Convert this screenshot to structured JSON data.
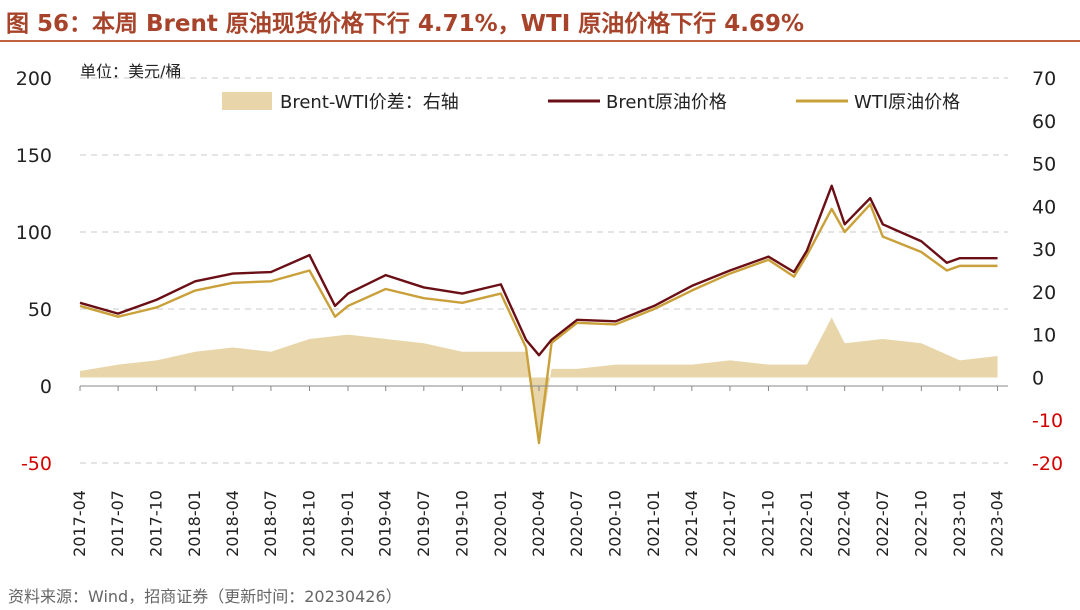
{
  "title": "图 56：本周 Brent 原油现货价格下行 4.71%，WTI 原油价格下行 4.69%",
  "unit_label": "单位：美元/桶",
  "source": "资料来源：Wind，招商证券（更新时间：20230426）",
  "colors": {
    "title": "#a6432a",
    "brent": "#6b0f16",
    "wti": "#c9a03a",
    "spread": "#e8d5a9",
    "negative_tick": "#d40000"
  },
  "chart_data": {
    "type": "line",
    "title": "",
    "xlabel": "",
    "ylabel": "",
    "left_axis": {
      "ylim": [
        -50,
        200
      ],
      "ticks": [
        "200",
        "150",
        "100",
        "50",
        "0",
        "-50"
      ],
      "negative_tick_color": "#d40000"
    },
    "right_axis": {
      "ylim": [
        -20,
        70
      ],
      "ticks": [
        "70",
        "60",
        "50",
        "40",
        "30",
        "20",
        "10",
        "0",
        "-10",
        "-20"
      ]
    },
    "x_tick_labels": [
      "2017-04",
      "2017-07",
      "2017-10",
      "2018-01",
      "2018-04",
      "2018-07",
      "2018-10",
      "2019-01",
      "2019-04",
      "2019-07",
      "2019-10",
      "2020-01",
      "2020-04",
      "2020-07",
      "2020-10",
      "2021-01",
      "2021-04",
      "2021-07",
      "2021-10",
      "2022-01",
      "2022-04",
      "2022-07",
      "2022-10",
      "2023-01",
      "2023-04"
    ],
    "legend_position": "top",
    "grid": "horizontal dashed",
    "series": [
      {
        "name": "Brent-WTI价差：右轴",
        "type": "area",
        "axis": "right",
        "x": [
          "2017-04",
          "2017-07",
          "2017-10",
          "2018-01",
          "2018-04",
          "2018-07",
          "2018-10",
          "2019-01",
          "2019-04",
          "2019-07",
          "2019-10",
          "2020-01",
          "2020-03",
          "2020-04",
          "2020-05",
          "2020-07",
          "2020-10",
          "2021-01",
          "2021-04",
          "2021-07",
          "2021-10",
          "2022-01",
          "2022-03",
          "2022-04",
          "2022-07",
          "2022-10",
          "2023-01",
          "2023-04"
        ],
        "values": [
          1.5,
          3,
          4,
          6,
          7,
          6,
          9,
          10,
          9,
          8,
          6,
          6,
          6,
          -16,
          2,
          2,
          3,
          3,
          3,
          4,
          3,
          3,
          14,
          8,
          9,
          8,
          4,
          5
        ]
      },
      {
        "name": "Brent原油价格",
        "type": "line",
        "axis": "left",
        "x": [
          "2017-04",
          "2017-07",
          "2017-10",
          "2018-01",
          "2018-04",
          "2018-07",
          "2018-10",
          "2018-12",
          "2019-01",
          "2019-04",
          "2019-07",
          "2019-10",
          "2020-01",
          "2020-03",
          "2020-04",
          "2020-05",
          "2020-07",
          "2020-10",
          "2021-01",
          "2021-04",
          "2021-07",
          "2021-10",
          "2021-12",
          "2022-01",
          "2022-03",
          "2022-04",
          "2022-06",
          "2022-07",
          "2022-10",
          "2022-12",
          "2023-01",
          "2023-04"
        ],
        "values": [
          54,
          47,
          56,
          68,
          73,
          74,
          85,
          52,
          60,
          72,
          64,
          60,
          66,
          30,
          20,
          30,
          43,
          42,
          52,
          65,
          75,
          84,
          74,
          88,
          130,
          105,
          122,
          105,
          94,
          80,
          83,
          83
        ]
      },
      {
        "name": "WTI原油价格",
        "type": "line",
        "axis": "left",
        "x": [
          "2017-04",
          "2017-07",
          "2017-10",
          "2018-01",
          "2018-04",
          "2018-07",
          "2018-10",
          "2018-12",
          "2019-01",
          "2019-04",
          "2019-07",
          "2019-10",
          "2020-01",
          "2020-03",
          "2020-04",
          "2020-05",
          "2020-07",
          "2020-10",
          "2021-01",
          "2021-04",
          "2021-07",
          "2021-10",
          "2021-12",
          "2022-01",
          "2022-03",
          "2022-04",
          "2022-06",
          "2022-07",
          "2022-10",
          "2022-12",
          "2023-01",
          "2023-04"
        ],
        "values": [
          52,
          45,
          51,
          62,
          67,
          68,
          75,
          45,
          52,
          63,
          57,
          54,
          60,
          25,
          -37,
          28,
          41,
          40,
          50,
          62,
          73,
          82,
          71,
          85,
          115,
          100,
          118,
          97,
          87,
          75,
          78,
          78
        ]
      }
    ]
  }
}
